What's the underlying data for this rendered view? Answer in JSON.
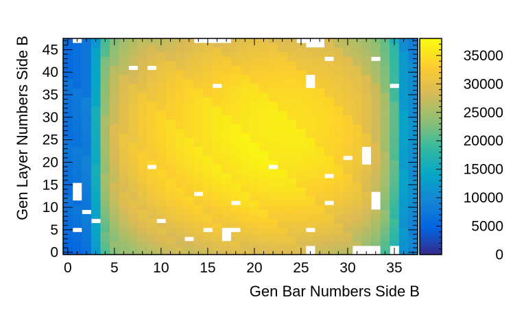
{
  "chart_data": {
    "type": "heatmap",
    "title": "",
    "xlabel": "Gen Bar Numbers Side B",
    "ylabel": "Gen Layer Numbers Side B",
    "x_bins": 38,
    "y_bins": 48,
    "xlim": [
      -0.5,
      37.5
    ],
    "ylim": [
      -0.5,
      47.5
    ],
    "x_ticks": [
      0,
      5,
      10,
      15,
      20,
      25,
      30,
      35
    ],
    "y_ticks": [
      0,
      5,
      10,
      15,
      20,
      25,
      30,
      35,
      40,
      45
    ],
    "colorbar": {
      "min": 0,
      "max": 38000,
      "ticks": [
        0,
        5000,
        10000,
        15000,
        20000,
        25000,
        30000,
        35000
      ],
      "palette": [
        "#352a87",
        "#0363e1",
        "#1485d4",
        "#06a7c6",
        "#38b99e",
        "#92bf73",
        "#d9ba56",
        "#fcce2e",
        "#f9fb0e"
      ]
    },
    "column_profile": [
      {
        "bar": 0,
        "count": 7000
      },
      {
        "bar": 1,
        "count": 7500
      },
      {
        "bar": 2,
        "count": 8500
      },
      {
        "bar": 3,
        "count": 15500
      },
      {
        "bar": 4,
        "count": 25000
      },
      {
        "bar": 5,
        "count": 28500
      },
      {
        "bar": 6,
        "count": 30500
      },
      {
        "bar": 7,
        "count": 31500
      },
      {
        "bar": 8,
        "count": 32500
      },
      {
        "bar": 9,
        "count": 33200
      },
      {
        "bar": 10,
        "count": 33800
      },
      {
        "bar": 11,
        "count": 34300
      },
      {
        "bar": 12,
        "count": 34700
      },
      {
        "bar": 13,
        "count": 35100
      },
      {
        "bar": 14,
        "count": 35400
      },
      {
        "bar": 15,
        "count": 35700
      },
      {
        "bar": 16,
        "count": 36000
      },
      {
        "bar": 17,
        "count": 36200
      },
      {
        "bar": 18,
        "count": 36400
      },
      {
        "bar": 19,
        "count": 36600
      },
      {
        "bar": 20,
        "count": 36700
      },
      {
        "bar": 21,
        "count": 36700
      },
      {
        "bar": 22,
        "count": 36600
      },
      {
        "bar": 23,
        "count": 36400
      },
      {
        "bar": 24,
        "count": 36200
      },
      {
        "bar": 25,
        "count": 35900
      },
      {
        "bar": 26,
        "count": 35500
      },
      {
        "bar": 27,
        "count": 35000
      },
      {
        "bar": 28,
        "count": 34500
      },
      {
        "bar": 29,
        "count": 33800
      },
      {
        "bar": 30,
        "count": 33000
      },
      {
        "bar": 31,
        "count": 32000
      },
      {
        "bar": 32,
        "count": 30500
      },
      {
        "bar": 33,
        "count": 28500
      },
      {
        "bar": 34,
        "count": 25500
      },
      {
        "bar": 35,
        "count": 21000
      },
      {
        "bar": 36,
        "count": 13500
      },
      {
        "bar": 37,
        "count": 11000
      }
    ],
    "row_center_layer": 24,
    "row_falloff_fraction": 0.22,
    "empty_bins": [
      [
        1,
        47
      ],
      [
        14,
        47
      ],
      [
        15,
        47
      ],
      [
        16,
        47
      ],
      [
        17,
        47
      ],
      [
        25,
        47
      ],
      [
        26,
        47
      ],
      [
        27,
        47
      ],
      [
        26,
        46
      ],
      [
        27,
        46
      ],
      [
        7,
        41
      ],
      [
        9,
        41
      ],
      [
        28,
        43
      ],
      [
        33,
        43
      ],
      [
        16,
        37
      ],
      [
        26,
        37
      ],
      [
        26,
        38
      ],
      [
        26,
        39
      ],
      [
        35,
        37
      ],
      [
        9,
        19
      ],
      [
        22,
        19
      ],
      [
        30,
        21
      ],
      [
        32,
        20
      ],
      [
        32,
        21
      ],
      [
        32,
        22
      ],
      [
        32,
        23
      ],
      [
        28,
        17
      ],
      [
        1,
        12
      ],
      [
        1,
        13
      ],
      [
        1,
        14
      ],
      [
        1,
        15
      ],
      [
        14,
        13
      ],
      [
        18,
        11
      ],
      [
        28,
        11
      ],
      [
        33,
        10
      ],
      [
        33,
        11
      ],
      [
        33,
        12
      ],
      [
        33,
        13
      ],
      [
        2,
        9
      ],
      [
        3,
        7
      ],
      [
        10,
        7
      ],
      [
        1,
        5
      ],
      [
        15,
        5
      ],
      [
        17,
        5
      ],
      [
        18,
        5
      ],
      [
        26,
        5
      ],
      [
        17,
        4
      ],
      [
        17,
        3
      ],
      [
        13,
        3
      ],
      [
        26,
        1
      ],
      [
        31,
        1
      ],
      [
        32,
        1
      ],
      [
        33,
        1
      ],
      [
        35,
        1
      ],
      [
        26,
        0
      ],
      [
        31,
        0
      ],
      [
        32,
        0
      ],
      [
        33,
        0
      ],
      [
        35,
        0
      ]
    ]
  }
}
